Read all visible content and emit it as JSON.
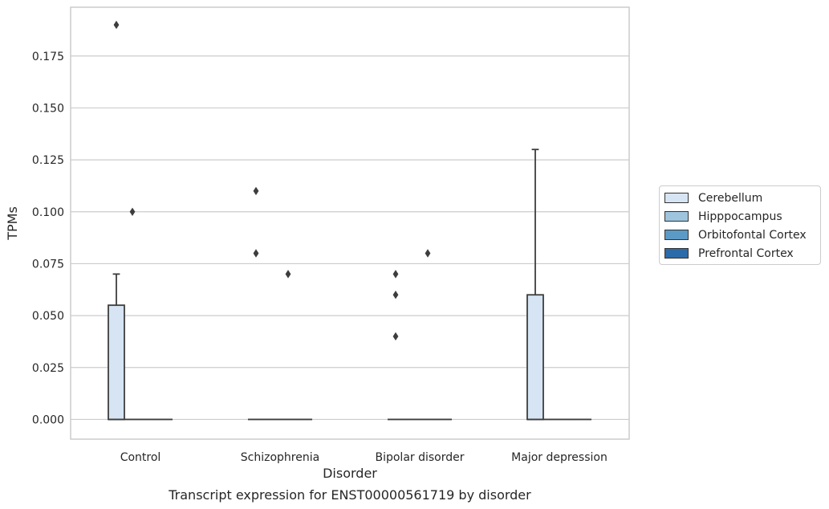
{
  "chart_data": {
    "type": "box",
    "caption": "Transcript expression for ENST00000561719 by disorder",
    "xlabel": "Disorder",
    "ylabel": "TPMs",
    "categories": [
      "Control",
      "Schizophrenia",
      "Bipolar disorder",
      "Major depression"
    ],
    "ylim": [
      -0.0095,
      0.1985
    ],
    "yticks": [
      0.0,
      0.025,
      0.05,
      0.075,
      0.1,
      0.125,
      0.15,
      0.175
    ],
    "ytick_labels": [
      "0.000",
      "0.025",
      "0.050",
      "0.075",
      "0.100",
      "0.125",
      "0.150",
      "0.175"
    ],
    "grid": true,
    "legend_position": "right",
    "series": [
      {
        "name": "Cerebellum",
        "color": "#d6e4f3",
        "boxes": [
          {
            "q1": 0.0,
            "median": 0.0,
            "q3": 0.055,
            "whisker_low": 0.0,
            "whisker_high": 0.07,
            "outliers": [
              0.19
            ]
          },
          {
            "q1": 0.0,
            "median": 0.0,
            "q3": 0.0,
            "whisker_low": 0.0,
            "whisker_high": 0.0,
            "outliers": [
              0.11,
              0.08
            ]
          },
          {
            "q1": 0.0,
            "median": 0.0,
            "q3": 0.0,
            "whisker_low": 0.0,
            "whisker_high": 0.0,
            "outliers": [
              0.07,
              0.06,
              0.04
            ]
          },
          {
            "q1": 0.0,
            "median": 0.0,
            "q3": 0.06,
            "whisker_low": 0.0,
            "whisker_high": 0.13,
            "outliers": []
          }
        ]
      },
      {
        "name": "Hipppocampus",
        "color": "#9ec4de",
        "boxes": [
          {
            "q1": 0.0,
            "median": 0.0,
            "q3": 0.0,
            "whisker_low": 0.0,
            "whisker_high": 0.0,
            "outliers": [
              0.1
            ]
          },
          {
            "q1": 0.0,
            "median": 0.0,
            "q3": 0.0,
            "whisker_low": 0.0,
            "whisker_high": 0.0,
            "outliers": []
          },
          {
            "q1": 0.0,
            "median": 0.0,
            "q3": 0.0,
            "whisker_low": 0.0,
            "whisker_high": 0.0,
            "outliers": []
          },
          {
            "q1": 0.0,
            "median": 0.0,
            "q3": 0.0,
            "whisker_low": 0.0,
            "whisker_high": 0.0,
            "outliers": []
          }
        ]
      },
      {
        "name": "Orbitofontal Cortex",
        "color": "#5b9ac6",
        "boxes": [
          {
            "q1": 0.0,
            "median": 0.0,
            "q3": 0.0,
            "whisker_low": 0.0,
            "whisker_high": 0.0,
            "outliers": []
          },
          {
            "q1": 0.0,
            "median": 0.0,
            "q3": 0.0,
            "whisker_low": 0.0,
            "whisker_high": 0.0,
            "outliers": [
              0.07
            ]
          },
          {
            "q1": 0.0,
            "median": 0.0,
            "q3": 0.0,
            "whisker_low": 0.0,
            "whisker_high": 0.0,
            "outliers": [
              0.08
            ]
          },
          {
            "q1": 0.0,
            "median": 0.0,
            "q3": 0.0,
            "whisker_low": 0.0,
            "whisker_high": 0.0,
            "outliers": []
          }
        ]
      },
      {
        "name": "Prefrontal Cortex",
        "color": "#2b6ba9",
        "boxes": [
          {
            "q1": 0.0,
            "median": 0.0,
            "q3": 0.0,
            "whisker_low": 0.0,
            "whisker_high": 0.0,
            "outliers": []
          },
          {
            "q1": 0.0,
            "median": 0.0,
            "q3": 0.0,
            "whisker_low": 0.0,
            "whisker_high": 0.0,
            "outliers": []
          },
          {
            "q1": 0.0,
            "median": 0.0,
            "q3": 0.0,
            "whisker_low": 0.0,
            "whisker_high": 0.0,
            "outliers": []
          },
          {
            "q1": 0.0,
            "median": 0.0,
            "q3": 0.0,
            "whisker_low": 0.0,
            "whisker_high": 0.0,
            "outliers": []
          }
        ]
      }
    ]
  }
}
